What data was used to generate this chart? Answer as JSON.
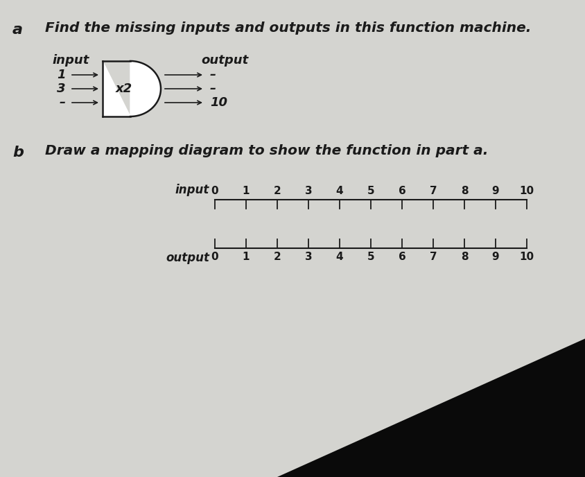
{
  "bg_color": "#d4d4d0",
  "dark_bg_color": "#111111",
  "title_a": "Find the missing inputs and outputs in this function machine.",
  "label_a": "a",
  "label_b": "b",
  "label_input": "input",
  "label_output": "output",
  "machine_label": "x2",
  "machine_inputs": [
    "1",
    "3",
    "–"
  ],
  "machine_outputs": [
    "–",
    "–",
    "10"
  ],
  "part_b_text": "Draw a mapping diagram to show the function in part a.",
  "input_numbers": [
    0,
    1,
    2,
    3,
    4,
    5,
    6,
    7,
    8,
    9,
    10
  ],
  "output_numbers": [
    0,
    1,
    2,
    3,
    4,
    5,
    6,
    7,
    8,
    9,
    10
  ],
  "input_label": "input",
  "output_label": "output",
  "text_color": "#1a1a1a",
  "line_color": "#1a1a1a"
}
